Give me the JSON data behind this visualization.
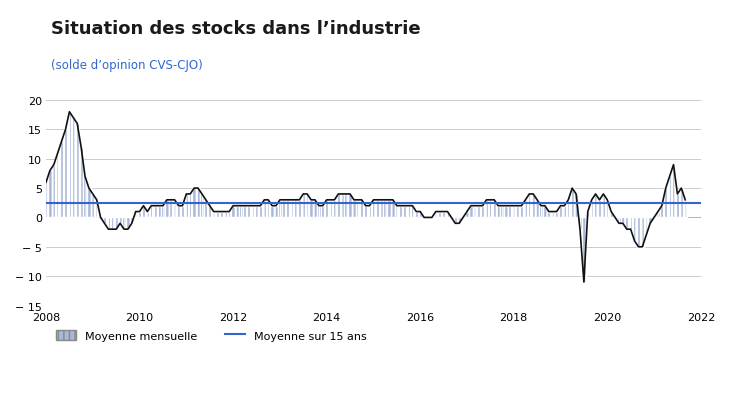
{
  "title": "Situation des stocks dans l’industrie",
  "subtitle": "(solde d’opinion CVS-CJO)",
  "title_color": "#1a1a1a",
  "subtitle_color": "#3366cc",
  "mean_15y": 2.5,
  "mean_line_color": "#3366cc",
  "bar_color": "#a8b8d8",
  "bar_edge_color": "#ffffff",
  "line_color": "#111111",
  "background_color": "#ffffff",
  "grid_color": "#cccccc",
  "ylim": [
    -15,
    20
  ],
  "yticks": [
    -15,
    -10,
    -5,
    0,
    5,
    10,
    15,
    20
  ],
  "xticks": [
    2008,
    2010,
    2012,
    2014,
    2016,
    2018,
    2020,
    2022
  ],
  "legend_label_bar": "Moyenne mensuelle",
  "legend_label_line": "Moyenne sur 15 ans",
  "values": [
    6,
    8,
    9,
    11,
    13,
    15,
    18,
    17,
    16,
    12,
    7,
    5,
    4,
    3,
    0,
    -1,
    -2,
    -2,
    -2,
    -1,
    -2,
    -2,
    -1,
    1,
    1,
    2,
    1,
    2,
    2,
    2,
    2,
    3,
    3,
    3,
    2,
    2,
    4,
    4,
    5,
    5,
    4,
    3,
    2,
    1,
    1,
    1,
    1,
    1,
    2,
    2,
    2,
    2,
    2,
    2,
    2,
    2,
    3,
    3,
    2,
    2,
    3,
    3,
    3,
    3,
    3,
    3,
    4,
    4,
    3,
    3,
    2,
    2,
    3,
    3,
    3,
    4,
    4,
    4,
    4,
    3,
    3,
    3,
    2,
    2,
    3,
    3,
    3,
    3,
    3,
    3,
    2,
    2,
    2,
    2,
    2,
    1,
    1,
    0,
    0,
    0,
    1,
    1,
    1,
    1,
    0,
    -1,
    -1,
    0,
    1,
    2,
    2,
    2,
    2,
    3,
    3,
    3,
    2,
    2,
    2,
    2,
    2,
    2,
    2,
    3,
    4,
    4,
    3,
    2,
    2,
    1,
    1,
    1,
    2,
    2,
    3,
    5,
    4,
    -2,
    -11,
    1,
    3,
    4,
    3,
    4,
    3,
    1,
    0,
    -1,
    -1,
    -2,
    -2,
    -4,
    -5,
    -5,
    -3,
    -1,
    0,
    1,
    2,
    5,
    7,
    9,
    4,
    5,
    3
  ],
  "start_year": 2008,
  "start_month": 1
}
